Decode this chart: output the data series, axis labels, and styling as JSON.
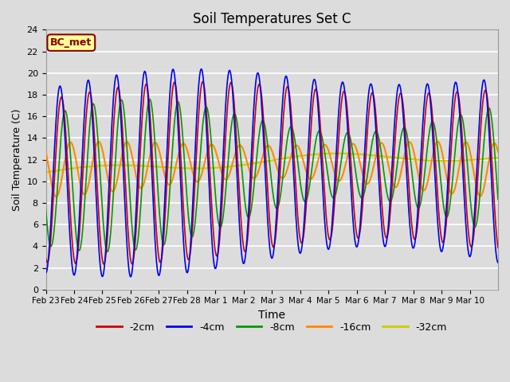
{
  "title": "Soil Temperatures Set C",
  "xlabel": "Time",
  "ylabel": "Soil Temperature (C)",
  "ylim": [
    0,
    24
  ],
  "background_color": "#dcdcdc",
  "plot_bg_color": "#dcdcdc",
  "legend_label": "BC_met",
  "legend_bg": "#ffff99",
  "legend_border": "#8b0000",
  "colors": {
    "-2cm": "#cc0000",
    "-4cm": "#0000ee",
    "-8cm": "#009900",
    "-16cm": "#ff8800",
    "-32cm": "#cccc00"
  },
  "x_tick_labels": [
    "Feb 23",
    "Feb 24",
    "Feb 25",
    "Feb 26",
    "Feb 27",
    "Feb 28",
    "Mar 1",
    "Mar 2",
    "Mar 3",
    "Mar 4",
    "Mar 5",
    "Mar 6",
    "Mar 7",
    "Mar 8",
    "Mar 9",
    "Mar 10"
  ],
  "legend_items": [
    "-2cm",
    "-4cm",
    "-8cm",
    "-16cm",
    "-32cm"
  ],
  "grid_color": "#ffffff",
  "yticks": [
    0,
    2,
    4,
    6,
    8,
    10,
    12,
    14,
    16,
    18,
    20,
    22,
    24
  ]
}
